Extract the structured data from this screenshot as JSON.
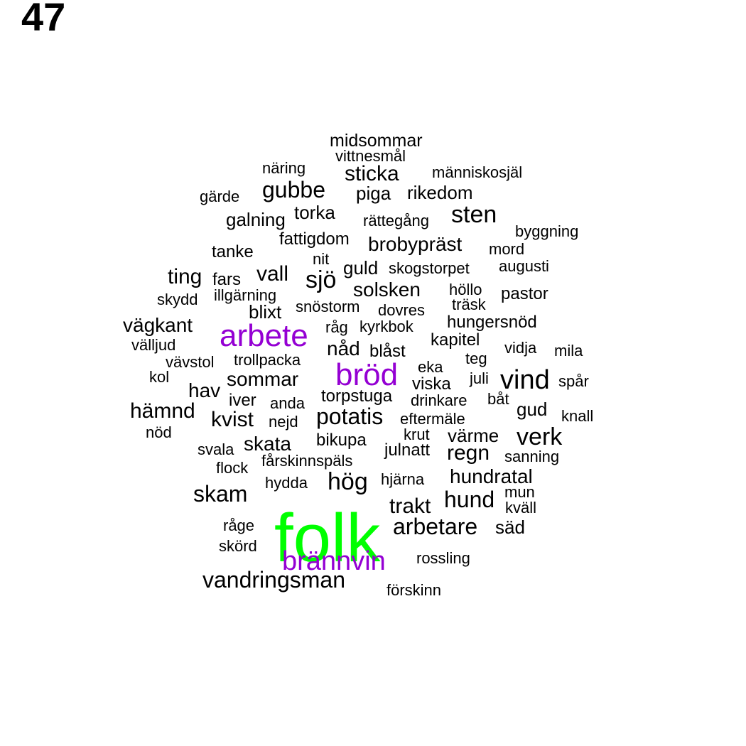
{
  "page_number": "47",
  "colors": {
    "default": "#000000",
    "accent_purple": "#9400D3",
    "accent_green": "#00FF00"
  },
  "words": [
    {
      "text": "folk",
      "weight": 10,
      "color": "#00FF00"
    },
    {
      "text": "arbete",
      "weight": 6,
      "color": "#9400D3"
    },
    {
      "text": "bröd",
      "weight": 6,
      "color": "#9400D3"
    },
    {
      "text": "brännvin",
      "weight": 5,
      "color": "#9400D3"
    },
    {
      "text": "midsommar",
      "weight": 2
    },
    {
      "text": "vittnesmål",
      "weight": 1
    },
    {
      "text": "näring",
      "weight": 1
    },
    {
      "text": "sticka",
      "weight": 3
    },
    {
      "text": "människosjäl",
      "weight": 1
    },
    {
      "text": "gubbe",
      "weight": 3
    },
    {
      "text": "piga",
      "weight": 2
    },
    {
      "text": "rikedom",
      "weight": 2
    },
    {
      "text": "gärde",
      "weight": 1
    },
    {
      "text": "sten",
      "weight": 3
    },
    {
      "text": "torka",
      "weight": 2
    },
    {
      "text": "galning",
      "weight": 2
    },
    {
      "text": "rättegång",
      "weight": 1
    },
    {
      "text": "byggning",
      "weight": 1
    },
    {
      "text": "fattigdom",
      "weight": 2
    },
    {
      "text": "brobypräst",
      "weight": 3
    },
    {
      "text": "tanke",
      "weight": 2
    },
    {
      "text": "mord",
      "weight": 1
    },
    {
      "text": "nit",
      "weight": 1
    },
    {
      "text": "guld",
      "weight": 2
    },
    {
      "text": "skogstorpet",
      "weight": 1
    },
    {
      "text": "augusti",
      "weight": 1
    },
    {
      "text": "ting",
      "weight": 3
    },
    {
      "text": "vall",
      "weight": 3
    },
    {
      "text": "fars",
      "weight": 2
    },
    {
      "text": "sjö",
      "weight": 3
    },
    {
      "text": "solsken",
      "weight": 3
    },
    {
      "text": "höllo",
      "weight": 1
    },
    {
      "text": "pastor",
      "weight": 2
    },
    {
      "text": "skydd",
      "weight": 1
    },
    {
      "text": "illgärning",
      "weight": 1
    },
    {
      "text": "träsk",
      "weight": 1
    },
    {
      "text": "snöstorm",
      "weight": 1
    },
    {
      "text": "blixt",
      "weight": 2
    },
    {
      "text": "dovres",
      "weight": 1
    },
    {
      "text": "hungersnöd",
      "weight": 2
    },
    {
      "text": "vägkant",
      "weight": 3
    },
    {
      "text": "råg",
      "weight": 1
    },
    {
      "text": "kyrkbok",
      "weight": 1
    },
    {
      "text": "välljud",
      "weight": 1
    },
    {
      "text": "kapitel",
      "weight": 2
    },
    {
      "text": "nåd",
      "weight": 3
    },
    {
      "text": "vidja",
      "weight": 1
    },
    {
      "text": "blåst",
      "weight": 2
    },
    {
      "text": "mila",
      "weight": 1
    },
    {
      "text": "vävstol",
      "weight": 1
    },
    {
      "text": "trollpacka",
      "weight": 1
    },
    {
      "text": "teg",
      "weight": 1
    },
    {
      "text": "kol",
      "weight": 1
    },
    {
      "text": "eka",
      "weight": 1
    },
    {
      "text": "sommar",
      "weight": 3
    },
    {
      "text": "juli",
      "weight": 1
    },
    {
      "text": "vind",
      "weight": 4
    },
    {
      "text": "spår",
      "weight": 1
    },
    {
      "text": "viska",
      "weight": 2
    },
    {
      "text": "hav",
      "weight": 3
    },
    {
      "text": "torpstuga",
      "weight": 2
    },
    {
      "text": "iver",
      "weight": 2
    },
    {
      "text": "anda",
      "weight": 1
    },
    {
      "text": "drinkare",
      "weight": 1
    },
    {
      "text": "båt",
      "weight": 1
    },
    {
      "text": "hämnd",
      "weight": 3
    },
    {
      "text": "gud",
      "weight": 3
    },
    {
      "text": "knall",
      "weight": 1
    },
    {
      "text": "potatis",
      "weight": 3
    },
    {
      "text": "kvist",
      "weight": 3
    },
    {
      "text": "eftermäle",
      "weight": 1
    },
    {
      "text": "nejd",
      "weight": 1
    },
    {
      "text": "verk",
      "weight": 4
    },
    {
      "text": "nöd",
      "weight": 1
    },
    {
      "text": "krut",
      "weight": 1
    },
    {
      "text": "värme",
      "weight": 2
    },
    {
      "text": "bikupa",
      "weight": 2
    },
    {
      "text": "skata",
      "weight": 3
    },
    {
      "text": "svala",
      "weight": 1
    },
    {
      "text": "julnatt",
      "weight": 2
    },
    {
      "text": "regn",
      "weight": 3
    },
    {
      "text": "sanning",
      "weight": 1
    },
    {
      "text": "fårskinnspäls",
      "weight": 1
    },
    {
      "text": "flock",
      "weight": 1
    },
    {
      "text": "hundratal",
      "weight": 2
    },
    {
      "text": "hydda",
      "weight": 1
    },
    {
      "text": "hög",
      "weight": 3
    },
    {
      "text": "hjärna",
      "weight": 1
    },
    {
      "text": "skam",
      "weight": 3
    },
    {
      "text": "hund",
      "weight": 3
    },
    {
      "text": "mun",
      "weight": 1
    },
    {
      "text": "trakt",
      "weight": 3
    },
    {
      "text": "kväll",
      "weight": 1
    },
    {
      "text": "råge",
      "weight": 1
    },
    {
      "text": "arbetare",
      "weight": 3
    },
    {
      "text": "säd",
      "weight": 2
    },
    {
      "text": "skörd",
      "weight": 1
    },
    {
      "text": "rossling",
      "weight": 1
    },
    {
      "text": "vandringsman",
      "weight": 3
    },
    {
      "text": "förskinn",
      "weight": 1
    }
  ]
}
